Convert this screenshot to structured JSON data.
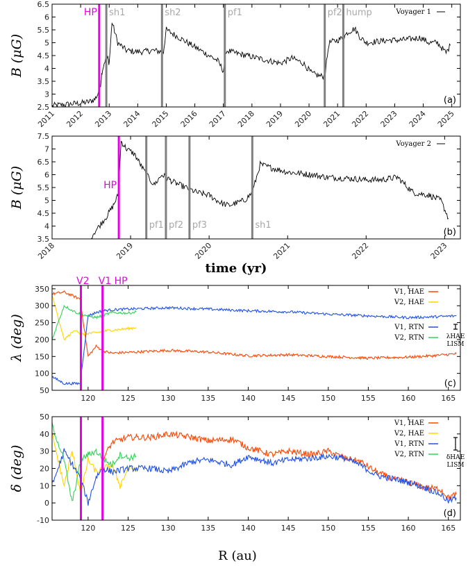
{
  "colors": {
    "v1_hae": "#ff4500",
    "v2_hae": "#ffd200",
    "v1_rtn": "#1e50e6",
    "v2_rtn": "#32d25a",
    "hp": "#e600e6",
    "event": "#808080",
    "mag": "#000000"
  },
  "xlabels": {
    "time": "time (yr)",
    "R": "R (au)"
  },
  "chart_data": [
    {
      "id": "a",
      "type": "line",
      "panel_label": "(a)",
      "ylabel": "B (μG)",
      "xlabel": "",
      "xlim": [
        2011,
        2025.3
      ],
      "ylim": [
        2.5,
        6.5
      ],
      "xticks": [
        "2011",
        "2012",
        "2013",
        "2014",
        "2015",
        "2016",
        "2017",
        "2018",
        "2019",
        "2020",
        "2021",
        "2022",
        "2023",
        "2024",
        "2025"
      ],
      "yticks": [
        "2.5",
        "3",
        "3.5",
        "4",
        "4.5",
        "5",
        "5.5",
        "6",
        "6.5"
      ],
      "series": [
        {
          "name": "Voyager 1",
          "x": [
            2011.0,
            2011.5,
            2012.0,
            2012.3,
            2012.5,
            2012.6,
            2012.7,
            2012.75,
            2012.85,
            2012.95,
            2013.0,
            2013.1,
            2013.3,
            2013.6,
            2013.9,
            2014.2,
            2014.5,
            2014.85,
            2014.9,
            2015.0,
            2015.3,
            2015.6,
            2015.9,
            2016.2,
            2016.5,
            2016.8,
            2017.0,
            2017.1,
            2017.4,
            2017.8,
            2018.2,
            2018.6,
            2019.0,
            2019.4,
            2019.8,
            2020.1,
            2020.4,
            2020.55,
            2020.7,
            2021.0,
            2021.2,
            2021.35,
            2021.6,
            2021.8,
            2022.0,
            2022.4,
            2022.8,
            2023.2,
            2023.6,
            2023.9,
            2024.2,
            2024.5,
            2024.65,
            2024.8,
            2024.95
          ],
          "y": [
            2.55,
            2.6,
            2.65,
            2.7,
            2.8,
            3.0,
            3.4,
            3.9,
            4.3,
            4.4,
            4.2,
            5.8,
            5.0,
            4.7,
            4.65,
            4.65,
            4.7,
            4.65,
            4.65,
            5.5,
            5.3,
            5.1,
            4.9,
            4.7,
            4.5,
            4.3,
            3.9,
            4.7,
            4.6,
            4.5,
            4.4,
            4.3,
            4.2,
            4.4,
            4.2,
            3.8,
            3.7,
            3.7,
            5.0,
            5.1,
            5.2,
            5.4,
            5.55,
            5.2,
            5.0,
            5.05,
            5.1,
            5.1,
            5.15,
            5.2,
            5.0,
            5.0,
            4.8,
            4.6,
            4.9
          ]
        }
      ],
      "hp_lines": [
        {
          "x": 2012.65,
          "label": "HP"
        }
      ],
      "events": [
        {
          "x": 2012.9,
          "label": "sh1"
        },
        {
          "x": 2014.85,
          "label": "sh2"
        },
        {
          "x": 2017.05,
          "label": "pf1"
        },
        {
          "x": 2020.55,
          "label": "pf2"
        },
        {
          "x": 2021.2,
          "label": "hump"
        }
      ],
      "legend": "top-right"
    },
    {
      "id": "b",
      "type": "line",
      "panel_label": "(b)",
      "ylabel": "B (μG)",
      "xlabel": "time (yr)",
      "xlim": [
        2018,
        2023.2
      ],
      "ylim": [
        3.5,
        7.5
      ],
      "xticks": [
        "2018",
        "2019",
        "2020",
        "2021",
        "2022",
        "2023"
      ],
      "yticks": [
        "3.5",
        "4",
        "4.5",
        "5",
        "5.5",
        "6",
        "6.5",
        "7",
        "7.5"
      ],
      "series": [
        {
          "name": "Voyager 2",
          "x": [
            2018.5,
            2018.6,
            2018.7,
            2018.78,
            2018.84,
            2018.88,
            2018.95,
            2019.05,
            2019.2,
            2019.3,
            2019.4,
            2019.55,
            2019.7,
            2019.85,
            2020.0,
            2020.15,
            2020.25,
            2020.35,
            2020.45,
            2020.55,
            2020.65,
            2020.75,
            2021.0,
            2021.3,
            2021.5,
            2021.8,
            2022.0,
            2022.2,
            2022.4,
            2022.6,
            2022.8,
            2022.95,
            2023.05
          ],
          "y": [
            3.6,
            4.0,
            4.4,
            4.8,
            5.2,
            7.3,
            7.0,
            6.8,
            6.0,
            5.6,
            6.0,
            5.7,
            5.5,
            5.3,
            5.2,
            4.9,
            4.8,
            4.9,
            5.0,
            5.3,
            6.4,
            6.3,
            6.1,
            6.0,
            5.9,
            5.85,
            5.8,
            5.8,
            5.9,
            5.3,
            5.2,
            5.0,
            4.3
          ]
        }
      ],
      "hp_lines": [
        {
          "x": 2018.85,
          "label": "HP"
        }
      ],
      "events": [
        {
          "x": 2019.2,
          "label": "pf1"
        },
        {
          "x": 2019.45,
          "label": "pf2"
        },
        {
          "x": 2019.75,
          "label": "pf3"
        },
        {
          "x": 2020.55,
          "label": "sh1"
        }
      ],
      "legend": "top-right"
    },
    {
      "id": "c",
      "type": "line",
      "panel_label": "(c)",
      "ylabel": "λ (deg)",
      "xlabel": "",
      "xlim": [
        115.5,
        166.5
      ],
      "ylim": [
        50,
        360
      ],
      "xticks": [
        "120",
        "125",
        "130",
        "135",
        "140",
        "145",
        "150",
        "155",
        "160",
        "165"
      ],
      "yticks": [
        "50",
        "100",
        "150",
        "200",
        "250",
        "300",
        "350"
      ],
      "series": [
        {
          "name": "V1, HAE",
          "x": [
            115.5,
            117,
            119,
            120,
            121,
            122,
            123,
            125,
            130,
            135,
            140,
            145,
            150,
            155,
            160,
            163,
            166
          ],
          "y": [
            335,
            340,
            320,
            150,
            180,
            165,
            160,
            162,
            168,
            163,
            152,
            155,
            150,
            145,
            148,
            152,
            158
          ]
        },
        {
          "name": "V2, HAE",
          "x": [
            115.5,
            117,
            118.5,
            119.1,
            120,
            121,
            122,
            123,
            125,
            126
          ],
          "y": [
            330,
            200,
            230,
            215,
            218,
            220,
            225,
            228,
            232,
            236
          ]
        },
        {
          "name": "V1, RTN",
          "x": [
            115.5,
            117,
            119,
            120,
            121,
            121.8,
            123,
            125,
            130,
            135,
            140,
            145,
            150,
            155,
            160,
            163,
            166
          ],
          "y": [
            90,
            70,
            70,
            270,
            280,
            285,
            288,
            290,
            294,
            290,
            285,
            282,
            275,
            270,
            265,
            267,
            270
          ]
        },
        {
          "name": "V2, RTN",
          "x": [
            115.5,
            117,
            118.5,
            119.1,
            120,
            121,
            122,
            123,
            125,
            126
          ],
          "y": [
            200,
            300,
            280,
            275,
            270,
            265,
            272,
            280,
            278,
            282
          ]
        }
      ],
      "hp_lines": [
        {
          "x": 119.1,
          "label": "V2"
        },
        {
          "x": 121.8,
          "label": "V1 HP"
        }
      ],
      "events": [],
      "lism_label": "LISM",
      "lism_sub": "λHAE",
      "legend": "right"
    },
    {
      "id": "d",
      "type": "line",
      "panel_label": "(d)",
      "ylabel": "δ (deg)",
      "xlabel": "R (au)",
      "xlim": [
        115.5,
        166.5
      ],
      "ylim": [
        -10,
        50
      ],
      "xticks": [
        "120",
        "125",
        "130",
        "135",
        "140",
        "145",
        "150",
        "155",
        "160",
        "165"
      ],
      "yticks": [
        "-10",
        "0",
        "10",
        "20",
        "30",
        "40",
        "50"
      ],
      "series": [
        {
          "name": "V1, HAE",
          "x": [
            121.8,
            123,
            125,
            128,
            130,
            133,
            135,
            138,
            140,
            143,
            145,
            148,
            150,
            152,
            154,
            156,
            158,
            160,
            162,
            164,
            165,
            166
          ],
          "y": [
            25,
            35,
            38,
            38,
            40,
            38,
            36,
            37,
            32,
            28,
            30,
            28,
            30,
            26,
            24,
            18,
            14,
            12,
            9,
            8,
            3,
            5
          ]
        },
        {
          "name": "V2, HAE",
          "x": [
            115.5,
            117,
            118,
            119.1,
            120,
            121,
            122,
            123,
            124,
            125,
            126
          ],
          "y": [
            40,
            10,
            30,
            5,
            25,
            18,
            20,
            22,
            10,
            20,
            20
          ]
        },
        {
          "name": "V1, RTN",
          "x": [
            115.5,
            117,
            119,
            120,
            121,
            121.8,
            123,
            125,
            128,
            130,
            133,
            135,
            138,
            140,
            143,
            145,
            148,
            150,
            152,
            154,
            156,
            158,
            160,
            162,
            164,
            165,
            166
          ],
          "y": [
            10,
            30,
            15,
            0,
            15,
            20,
            18,
            20,
            20,
            18,
            24,
            25,
            22,
            27,
            23,
            25,
            26,
            27,
            26,
            22,
            16,
            14,
            12,
            9,
            5,
            1,
            3
          ]
        },
        {
          "name": "V2, RTN",
          "x": [
            115.5,
            117,
            118,
            119.1,
            120,
            121,
            122,
            123,
            124,
            125,
            126
          ],
          "y": [
            45,
            25,
            0,
            25,
            28,
            30,
            25,
            22,
            28,
            26,
            27
          ]
        }
      ],
      "hp_lines": [
        {
          "x": 119.1,
          "label": ""
        },
        {
          "x": 121.8,
          "label": ""
        }
      ],
      "events": [],
      "lism_label": "LISM",
      "lism_sub": "δHAE",
      "legend": "right"
    }
  ]
}
